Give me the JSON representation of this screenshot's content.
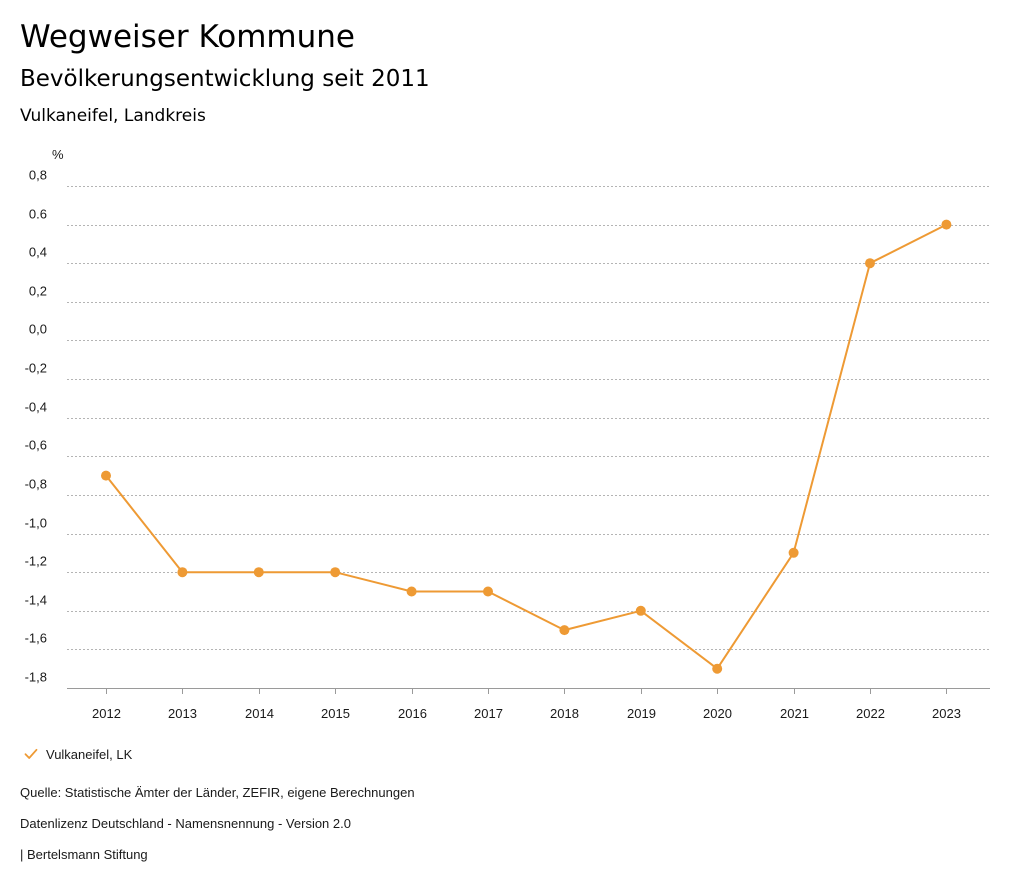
{
  "header": {
    "title": "Wegweiser Kommune",
    "subtitle": "Bevölkerungsentwicklung seit 2011",
    "region": "Vulkaneifel, Landkreis"
  },
  "chart_data": {
    "type": "line",
    "title": "Bevölkerungsentwicklung seit 2011",
    "subtitle": "Vulkaneifel, Landkreis",
    "ylabel": "%",
    "xlabel": "",
    "categories": [
      "2012",
      "2013",
      "2014",
      "2015",
      "2016",
      "2017",
      "2018",
      "2019",
      "2020",
      "2021",
      "2022",
      "2023"
    ],
    "series": [
      {
        "name": "Vulkaneifel, LK",
        "color": "#ee9a34",
        "values": [
          -0.7,
          -1.2,
          -1.2,
          -1.2,
          -1.3,
          -1.3,
          -1.5,
          -1.4,
          -1.7,
          -1.1,
          0.4,
          0.6
        ]
      }
    ],
    "ylim": [
      -1.8,
      0.8
    ],
    "yticks": [
      0.8,
      0.6,
      0.4,
      0.2,
      0.0,
      -0.2,
      -0.4,
      -0.6,
      -0.8,
      -1.0,
      -1.2,
      -1.4,
      -1.6,
      -1.8
    ],
    "ytick_labels": [
      "0,8",
      "0.6",
      "0,4",
      "0,2",
      "0,0",
      "-0,2",
      "-0,4",
      "-0,6",
      "-0,8",
      "-1,0",
      "-1,2",
      "-1,4",
      "-1,6",
      "-1,8"
    ],
    "grid": true,
    "grid_style": "dotted",
    "legend_position": "bottom-left"
  },
  "legend": {
    "items": [
      {
        "label": "Vulkaneifel, LK",
        "icon": "check-icon"
      }
    ]
  },
  "footer": {
    "source": "Quelle: Statistische Ämter der Länder, ZEFIR, eigene Berechnungen",
    "license": "Datenlizenz Deutschland - Namensnennung - Version 2.0",
    "credit": "| Bertelsmann Stiftung"
  }
}
